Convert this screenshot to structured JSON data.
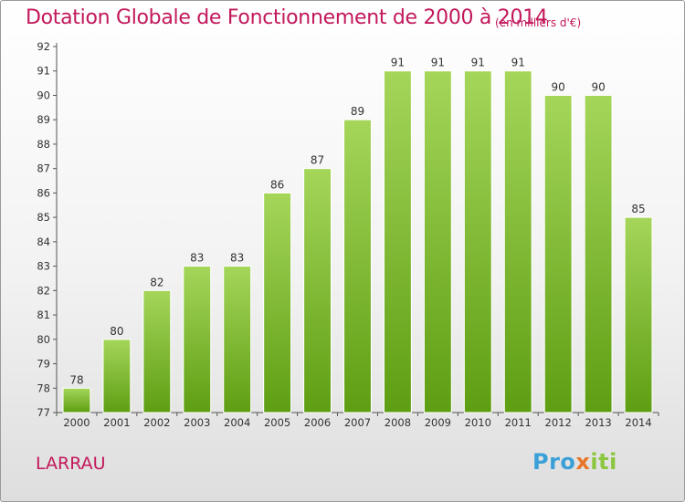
{
  "header": {
    "title": "Dotation Globale de Fonctionnement de 2000 à 2014",
    "subtitle": "(en milliers d'€)"
  },
  "footer": {
    "commune": "LARRAU",
    "logo": {
      "part1": "Pro",
      "part2": "x",
      "part3": "iti"
    }
  },
  "colors": {
    "title": "#c2185b",
    "bar_top": "#a5d65a",
    "bar_bottom": "#5e9e12",
    "axis_text": "#333333"
  },
  "chart_data": {
    "type": "bar",
    "title": "Dotation Globale de Fonctionnement de 2000 à 2014",
    "subtitle": "(en milliers d'€)",
    "xlabel": "",
    "ylabel": "",
    "categories": [
      "2000",
      "2001",
      "2002",
      "2003",
      "2004",
      "2005",
      "2006",
      "2007",
      "2008",
      "2009",
      "2010",
      "2011",
      "2012",
      "2013",
      "2014"
    ],
    "values": [
      78,
      80,
      82,
      83,
      83,
      86,
      87,
      89,
      91,
      91,
      91,
      91,
      90,
      90,
      85
    ],
    "ylim": [
      77,
      92
    ],
    "yticks": [
      77,
      78,
      79,
      80,
      81,
      82,
      83,
      84,
      85,
      86,
      87,
      88,
      89,
      90,
      91,
      92
    ],
    "grid": false,
    "data_labels": true
  }
}
